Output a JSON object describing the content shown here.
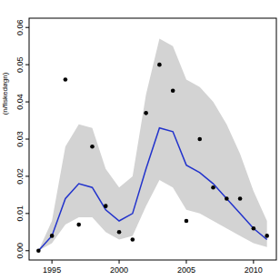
{
  "chart_data": {
    "type": "line",
    "y_label": "(n/fiskedøgn)",
    "x": [
      1994,
      1995,
      1996,
      1997,
      1998,
      1999,
      2000,
      2001,
      2002,
      2003,
      2004,
      2005,
      2006,
      2007,
      2008,
      2009,
      2010,
      2011
    ],
    "series": [
      {
        "type": "band",
        "color": "#d3d3d3",
        "upper": [
          0.0,
          0.008,
          0.028,
          0.034,
          0.033,
          0.022,
          0.017,
          0.02,
          0.042,
          0.057,
          0.055,
          0.046,
          0.044,
          0.04,
          0.034,
          0.026,
          0.016,
          0.008
        ],
        "lower": [
          0.0,
          0.002,
          0.007,
          0.009,
          0.009,
          0.005,
          0.003,
          0.004,
          0.012,
          0.019,
          0.017,
          0.011,
          0.01,
          0.008,
          0.006,
          0.004,
          0.002,
          0.001
        ]
      },
      {
        "type": "line",
        "color": "#2233cc",
        "values": [
          0.0,
          0.004,
          0.014,
          0.018,
          0.017,
          0.011,
          0.008,
          0.01,
          0.022,
          0.033,
          0.032,
          0.023,
          0.021,
          0.018,
          0.014,
          0.01,
          0.006,
          0.003
        ]
      },
      {
        "type": "scatter",
        "color": "#000000",
        "marker": "circle",
        "values": [
          0.0,
          0.004,
          0.046,
          0.007,
          0.028,
          0.012,
          0.005,
          0.003,
          0.037,
          0.05,
          0.043,
          0.008,
          0.03,
          0.017,
          0.014,
          0.014,
          0.006,
          0.004
        ]
      }
    ],
    "xlim": [
      1993.3,
      2011.7
    ],
    "xticks": [
      1995,
      2000,
      2005,
      2010
    ],
    "ylim": [
      -0.0025,
      0.0625
    ],
    "yticks": [
      {
        "value": 0,
        "label": "0.00"
      },
      {
        "value": 0.01,
        "label": "0.01"
      },
      {
        "value": 0.02,
        "label": "0.02"
      },
      {
        "value": 0.03,
        "label": "0.03"
      },
      {
        "value": 0.04,
        "label": "0.04"
      },
      {
        "value": 0.05,
        "label": "0.05"
      },
      {
        "value": 0.06,
        "label": "0.06"
      }
    ],
    "grid": false
  }
}
